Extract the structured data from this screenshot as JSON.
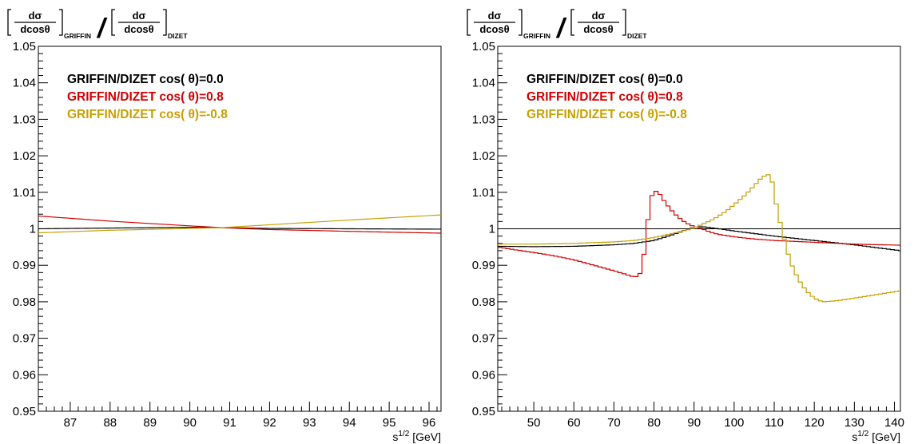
{
  "colors": {
    "black": "#000000",
    "red": "#d00000",
    "gold": "#c8a000",
    "darkred": "#a00000"
  },
  "chart_data": [
    {
      "type": "line",
      "ylabel_parts": {
        "num": "dσ",
        "den": "dcosθ",
        "sub1": "GRIFFIN",
        "slash": "/",
        "sub2": "DIZET"
      },
      "xlabel_base": "s",
      "xlabel_sup": "1/2",
      "xlabel_unit": " [GeV]",
      "xlim": [
        86.2,
        96.3
      ],
      "ylim": [
        0.95,
        1.05
      ],
      "xticks": [
        87,
        88,
        89,
        90,
        91,
        92,
        93,
        94,
        95,
        96
      ],
      "xtick_labels": [
        "87",
        "88",
        "89",
        "90",
        "91",
        "92",
        "93",
        "94",
        "95",
        "96"
      ],
      "yticks": [
        0.95,
        0.96,
        0.97,
        0.98,
        0.99,
        1.0,
        1.01,
        1.02,
        1.03,
        1.04,
        1.05
      ],
      "ytick_labels": [
        "0.95",
        "0.96",
        "0.97",
        "0.98",
        "0.99",
        "1",
        "1.01",
        "1.02",
        "1.03",
        "1.04",
        "1.05"
      ],
      "legend_position": "top-left",
      "series": [
        {
          "name": "GRIFFIN/DIZET cos( θ)=0.0",
          "color": "#000000",
          "style": "smooth",
          "x": [
            86.2,
            88.0,
            90.0,
            90.8,
            92.0,
            94.0,
            96.3
          ],
          "y": [
            1.0,
            1.0002,
            1.0004,
            1.0003,
            1.0001,
            1.0,
            0.9999
          ]
        },
        {
          "name": "GRIFFIN/DIZET cos( θ)=0.8",
          "color": "#d00000",
          "style": "smooth",
          "x": [
            86.2,
            88.0,
            90.0,
            90.8,
            92.0,
            94.0,
            96.3
          ],
          "y": [
            1.0035,
            1.0021,
            1.0008,
            1.0003,
            0.9998,
            0.9993,
            0.9988
          ]
        },
        {
          "name": "GRIFFIN/DIZET cos( θ)=-0.8",
          "color": "#c8a000",
          "style": "smooth",
          "x": [
            86.2,
            88.0,
            90.0,
            90.8,
            92.0,
            94.0,
            96.3
          ],
          "y": [
            0.9989,
            0.9996,
            1.0001,
            1.0003,
            1.0011,
            1.0024,
            1.0038
          ]
        }
      ]
    },
    {
      "type": "line",
      "ylabel_parts": {
        "num": "dσ",
        "den": "dcosθ",
        "sub1": "GRIFFIN",
        "slash": "/",
        "sub2": "DIZET"
      },
      "xlabel_base": "s",
      "xlabel_sup": "1/2",
      "xlabel_unit": " [GeV]",
      "xlim": [
        41,
        141.5
      ],
      "ylim": [
        0.95,
        1.05
      ],
      "xticks": [
        50,
        60,
        70,
        80,
        90,
        100,
        110,
        120,
        130,
        140
      ],
      "xtick_labels": [
        "50",
        "60",
        "70",
        "80",
        "90",
        "100",
        "110",
        "120",
        "130",
        "140"
      ],
      "yticks": [
        0.95,
        0.96,
        0.97,
        0.98,
        0.99,
        1.0,
        1.01,
        1.02,
        1.03,
        1.04,
        1.05
      ],
      "ytick_labels": [
        "0.95",
        "0.96",
        "0.97",
        "0.98",
        "0.99",
        "1",
        "1.01",
        "1.02",
        "1.03",
        "1.04",
        "1.05"
      ],
      "legend_position": "top-left",
      "reference_line": 1.0,
      "series": [
        {
          "name": "GRIFFIN/DIZET cos( θ)=0.0",
          "color": "#000000",
          "style": "step",
          "x": [
            41,
            50,
            60,
            70,
            75,
            80,
            85,
            88,
            90,
            92,
            94,
            97,
            100,
            105,
            110,
            115,
            120,
            130,
            141.5
          ],
          "y": [
            0.9952,
            0.9951,
            0.9952,
            0.9956,
            0.996,
            0.9968,
            0.9985,
            0.9997,
            1.0004,
            1.0006,
            1.0003,
            0.9999,
            0.9994,
            0.9987,
            0.998,
            0.9974,
            0.9968,
            0.9956,
            0.994
          ]
        },
        {
          "name": "GRIFFIN/DIZET cos( θ)=0.8",
          "color": "#d00000",
          "style": "step",
          "x": [
            41,
            45,
            50,
            55,
            60,
            65,
            70,
            73,
            75,
            76,
            77,
            77.5,
            78,
            79,
            80,
            81,
            82,
            84,
            86,
            88,
            90,
            92,
            94,
            96,
            100,
            105,
            110,
            120,
            130,
            141.5
          ],
          "y": [
            0.995,
            0.9943,
            0.9935,
            0.9926,
            0.9915,
            0.99,
            0.9885,
            0.9875,
            0.9868,
            0.987,
            0.9885,
            0.993,
            0.997,
            1.008,
            1.0102,
            1.0103,
            1.0085,
            1.0055,
            1.0032,
            1.0016,
            1.0006,
            1.0,
            0.9991,
            0.9985,
            0.9978,
            0.9972,
            0.9968,
            0.9963,
            0.9958,
            0.9955
          ]
        },
        {
          "name": "GRIFFIN/DIZET cos( θ)=-0.8",
          "color": "#c8a000",
          "style": "step",
          "x": [
            41,
            50,
            60,
            70,
            75,
            80,
            85,
            88,
            90,
            92,
            95,
            98,
            100,
            103,
            105,
            107,
            108.5,
            109.5,
            110.5,
            112,
            114,
            116,
            118,
            120,
            122,
            125,
            130,
            141.5
          ],
          "y": [
            0.9958,
            0.9958,
            0.996,
            0.9964,
            0.9968,
            0.9976,
            0.9988,
            0.9996,
            1.0002,
            1.0012,
            1.0027,
            1.0048,
            1.0066,
            1.0095,
            1.0118,
            1.0142,
            1.0148,
            1.0128,
            1.0068,
            0.9992,
            0.991,
            0.9862,
            0.983,
            0.981,
            0.98,
            0.9802,
            0.981,
            0.983
          ]
        }
      ]
    }
  ]
}
